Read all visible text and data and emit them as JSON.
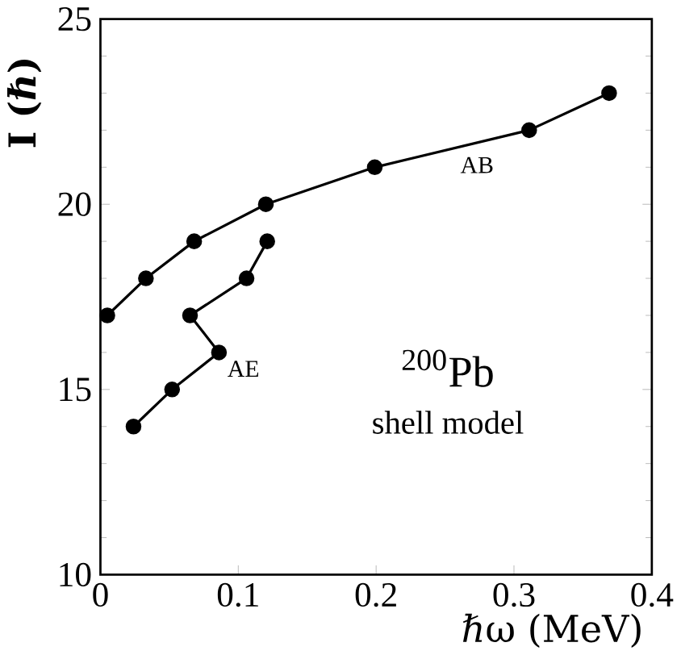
{
  "chart_data": {
    "type": "line",
    "xlabel": "ℏω (MeV)",
    "ylabel": "I (ℏ)",
    "annotations": [
      "$^{200}$Pb",
      "shell model"
    ],
    "series": [
      {
        "name": "AB",
        "color": "#000000",
        "x": [
          0.005,
          0.033,
          0.068,
          0.12,
          0.199,
          0.311,
          0.369
        ],
        "values": [
          17,
          18,
          19,
          20,
          21,
          22,
          23
        ]
      },
      {
        "name": "AE",
        "color": "#000000",
        "x": [
          0.024,
          0.052,
          0.086,
          0.065,
          0.106,
          0.121
        ],
        "values": [
          14,
          15,
          16,
          17,
          18,
          19
        ]
      }
    ],
    "xlim": [
      0,
      0.4
    ],
    "ylim": [
      10,
      25
    ],
    "xticks": [
      0,
      0.1,
      0.2,
      0.3,
      0.4
    ],
    "yticks": [
      10,
      15,
      20,
      25
    ],
    "marker": "circle",
    "line_style": "solid"
  }
}
